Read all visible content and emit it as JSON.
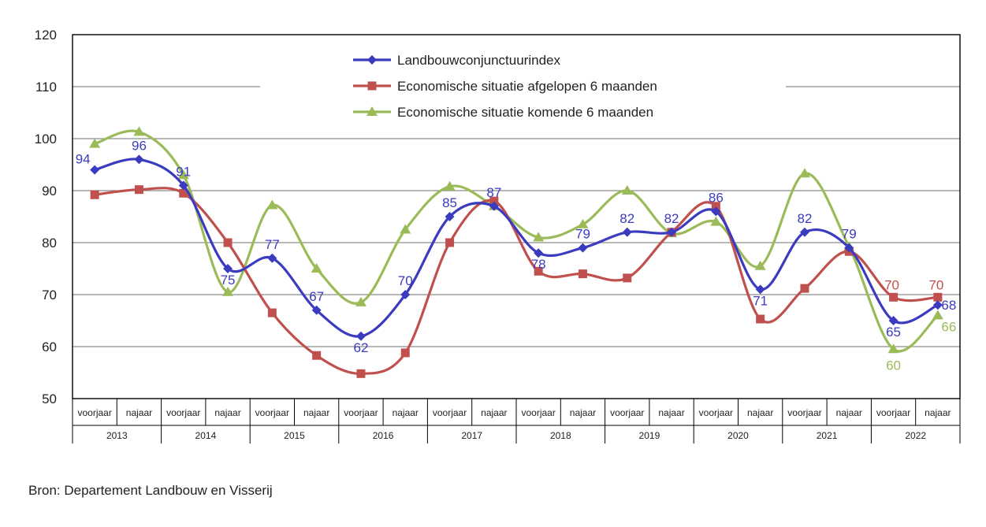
{
  "chart_data": {
    "type": "line",
    "title": "",
    "xlabel": "",
    "ylabel": "",
    "ylim": [
      50,
      120
    ],
    "yticks": [
      50,
      60,
      70,
      80,
      90,
      100,
      110,
      120
    ],
    "grid": true,
    "legend_position": "top-center",
    "years": [
      "2013",
      "2014",
      "2015",
      "2016",
      "2017",
      "2018",
      "2019",
      "2020",
      "2021",
      "2022"
    ],
    "halves": [
      "voorjaar",
      "najaar"
    ],
    "categories": [
      "2013 voorjaar",
      "2013 najaar",
      "2014 voorjaar",
      "2014 najaar",
      "2015 voorjaar",
      "2015 najaar",
      "2016 voorjaar",
      "2016 najaar",
      "2017 voorjaar",
      "2017 najaar",
      "2018 voorjaar",
      "2018 najaar",
      "2019 voorjaar",
      "2019 najaar",
      "2020 voorjaar",
      "2020 najaar",
      "2021 voorjaar",
      "2021 najaar",
      "2022 voorjaar",
      "2022 najaar"
    ],
    "series": [
      {
        "name": "Landbouwconjunctuurindex",
        "color": "#3b3bbf",
        "marker": "diamond",
        "values": [
          94,
          96,
          91,
          75,
          77,
          67,
          62,
          70,
          85,
          87,
          78,
          79,
          82,
          82,
          86,
          71,
          82,
          79,
          65,
          68
        ],
        "labels": [
          "94",
          "96",
          "91",
          "75",
          "77",
          "67",
          "62",
          "70",
          "85",
          "87",
          "78",
          "79",
          "82",
          "82",
          "86",
          "71",
          "82",
          "79",
          "65",
          "68"
        ]
      },
      {
        "name": "Economische situatie afgelopen 6 maanden",
        "color": "#c0504d",
        "marker": "square",
        "values": [
          89.2,
          90.2,
          89.5,
          80,
          66.5,
          58.3,
          54.8,
          58.8,
          80,
          88,
          74.5,
          74,
          73.2,
          82,
          87,
          65.3,
          71.2,
          78.3,
          69.5,
          69.5
        ],
        "labels": [
          "",
          "",
          "",
          "",
          "",
          "",
          "",
          "",
          "",
          "",
          "",
          "",
          "",
          "",
          "",
          "",
          "",
          "",
          "70",
          "70"
        ]
      },
      {
        "name": "Economische situatie komende 6 maanden",
        "color": "#9bbb59",
        "marker": "triangle",
        "values": [
          99,
          101.3,
          93,
          70.5,
          87.2,
          75,
          68.5,
          82.5,
          90.8,
          87,
          81,
          83.5,
          90,
          81.8,
          84,
          75.5,
          93.3,
          79.2,
          59.5,
          66
        ],
        "labels": [
          "",
          "",
          "",
          "",
          "",
          "",
          "",
          "",
          "",
          "",
          "",
          "",
          "",
          "",
          "",
          "",
          "",
          "",
          "60",
          "66"
        ]
      }
    ]
  },
  "source_text": "Bron: Departement Landbouw en Visserij"
}
